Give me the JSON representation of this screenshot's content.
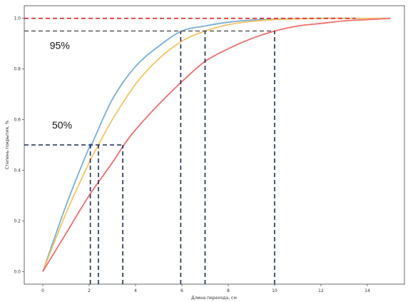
{
  "chart_data": {
    "type": "line",
    "xlabel": "Длина перехода, см",
    "ylabel": "Степень покрытия, %",
    "xlim": [
      -0.8,
      15.6
    ],
    "ylim": [
      -0.05,
      1.05
    ],
    "x_ticks": [
      0,
      2,
      4,
      6,
      8,
      10,
      12,
      14
    ],
    "x_tick_labels": [
      "0",
      "2",
      "4",
      "6",
      "8",
      "10",
      "12",
      "14"
    ],
    "y_ticks": [
      0.0,
      0.2,
      0.4,
      0.6,
      0.8,
      1.0
    ],
    "y_tick_labels": [
      "0.0",
      "0.2",
      "0.4",
      "0.6",
      "0.8",
      "1.0"
    ],
    "grid": false,
    "legend": "none",
    "series": [
      {
        "color": "#7aaed6",
        "x": [
          0,
          1,
          2,
          2.1,
          3,
          4,
          5,
          6,
          7,
          8,
          9,
          10,
          11,
          12,
          13,
          14,
          15
        ],
        "y": [
          0.0,
          0.26,
          0.49,
          0.5,
          0.68,
          0.81,
          0.89,
          0.95,
          0.97,
          0.985,
          0.993,
          0.997,
          0.999,
          1.0,
          1.0,
          1.0,
          1.0
        ]
      },
      {
        "color": "#f5c462",
        "x": [
          0,
          1,
          2,
          2.4,
          3,
          4,
          5,
          6,
          7,
          8,
          9,
          10,
          11,
          12,
          13,
          14,
          15
        ],
        "y": [
          0.0,
          0.23,
          0.43,
          0.5,
          0.6,
          0.74,
          0.84,
          0.91,
          0.95,
          0.975,
          0.988,
          0.995,
          0.998,
          1.0,
          1.0,
          1.0,
          1.0
        ]
      },
      {
        "color": "#f26d6d",
        "x": [
          0,
          1,
          2,
          3,
          3.5,
          4,
          5,
          6,
          7,
          8,
          9,
          10,
          11,
          12,
          13,
          14,
          15
        ],
        "y": [
          0.0,
          0.15,
          0.3,
          0.43,
          0.5,
          0.56,
          0.66,
          0.75,
          0.83,
          0.88,
          0.92,
          0.95,
          0.97,
          0.98,
          0.99,
          0.995,
          1.0
        ]
      }
    ],
    "reference_lines": [
      {
        "kind": "horizontal",
        "y": 1.0,
        "x_from": -0.8,
        "x_to": 13.5,
        "color": "#dd2222"
      },
      {
        "kind": "horizontal",
        "y": 0.95,
        "x_from": -0.8,
        "x_to": 10.0,
        "color": "#666666"
      },
      {
        "kind": "horizontal",
        "y": 0.5,
        "x_from": -0.8,
        "x_to": 3.5,
        "color": "#1a2f55"
      },
      {
        "kind": "vertical",
        "x": 2.05,
        "y_from": -0.05,
        "y_to": 0.5,
        "color": "#1a2f55"
      },
      {
        "kind": "vertical",
        "x": 2.4,
        "y_from": -0.05,
        "y_to": 0.5,
        "color": "#1a2f55"
      },
      {
        "kind": "vertical",
        "x": 3.45,
        "y_from": -0.05,
        "y_to": 0.5,
        "color": "#1a2f55"
      },
      {
        "kind": "vertical",
        "x": 5.95,
        "y_from": -0.05,
        "y_to": 0.95,
        "color": "#1a2f55"
      },
      {
        "kind": "vertical",
        "x": 7.0,
        "y_from": -0.05,
        "y_to": 0.95,
        "color": "#1a2f55"
      },
      {
        "kind": "vertical",
        "x": 10.0,
        "y_from": -0.05,
        "y_to": 0.95,
        "color": "#1a2f55"
      }
    ],
    "annotations": [
      {
        "text": "95%",
        "x": 0.3,
        "y": 0.88
      },
      {
        "text": "50%",
        "x": 0.4,
        "y": 0.565
      }
    ]
  }
}
